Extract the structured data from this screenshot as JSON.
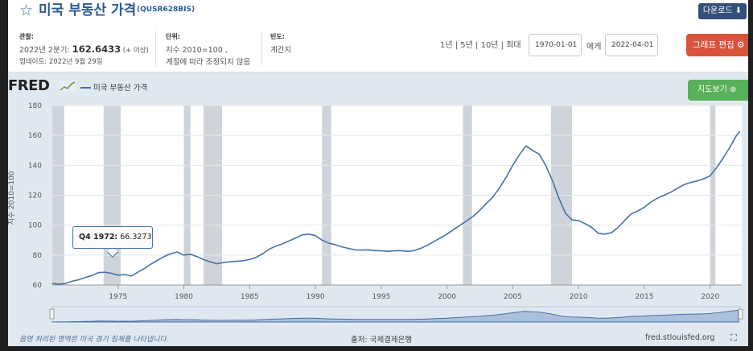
{
  "header": {
    "title": "미국 부동산 가격",
    "series_code": "(QUSR628BIS)",
    "download_label": "다운로드",
    "observation_label": "관찰:",
    "observation_period": "2022년 2분기: ",
    "observation_value": "162.6433",
    "observation_suffix": " (+ 이상)",
    "updated": "업데이트: 2022년 9월 29일",
    "units_label": "단위:",
    "units_line1": "지수 2010=100 ,",
    "units_line2": "계절에 따라 조정되지 않음",
    "frequency_label": "빈도:",
    "frequency_value": "계간지",
    "range_links": "1년 | 5년 | 10년 | 최대",
    "date_from": "1970-01-01",
    "date_to_label": "에게",
    "date_to": "2022-04-01",
    "edit_label": "그래프 편집"
  },
  "logo_text": "FRED",
  "map_button_label": "지도보기",
  "tooltip": {
    "label": "Q4 1972:",
    "value": " 66.3273"
  },
  "footer": {
    "recession_note": "음영 처리된 영역은 미국 경기 침체를 나타냅니다.",
    "source": "출처: 국제결제은행",
    "site": "fred.stlouisfed.org"
  },
  "colors": {
    "line": "#4572a7",
    "recession": "#cfd4da",
    "plot_bg": "#ffffff",
    "edit": "#d9533c",
    "map": "#58b15a"
  },
  "chart_data": {
    "type": "line",
    "title": "",
    "ylabel": "지수 2010=100",
    "xlabel": "",
    "xlim": [
      1970.0,
      2022.4
    ],
    "ylim": [
      60,
      180
    ],
    "yticks": [
      60,
      80,
      100,
      120,
      140,
      160,
      180
    ],
    "xticks": [
      1975,
      1980,
      1985,
      1990,
      1995,
      2000,
      2005,
      2010,
      2015,
      2020
    ],
    "grid": "horizontal",
    "legend": "top-left",
    "series": [
      {
        "name": "미국 부동산 가격",
        "x": [
          1970.0,
          1970.5,
          1971.0,
          1971.5,
          1972.0,
          1972.5,
          1973.0,
          1973.5,
          1974.0,
          1974.5,
          1975.0,
          1975.5,
          1976.0,
          1976.5,
          1977.0,
          1977.5,
          1978.0,
          1978.5,
          1979.0,
          1979.5,
          1980.0,
          1980.5,
          1981.0,
          1981.5,
          1982.0,
          1982.5,
          1983.0,
          1983.5,
          1984.0,
          1984.5,
          1985.0,
          1985.5,
          1986.0,
          1986.5,
          1987.0,
          1987.5,
          1988.0,
          1988.5,
          1989.0,
          1989.5,
          1990.0,
          1990.5,
          1991.0,
          1991.5,
          1992.0,
          1992.5,
          1993.0,
          1993.5,
          1994.0,
          1994.5,
          1995.0,
          1995.5,
          1996.0,
          1996.5,
          1997.0,
          1997.5,
          1998.0,
          1998.5,
          1999.0,
          1999.5,
          2000.0,
          2000.5,
          2001.0,
          2001.5,
          2002.0,
          2002.5,
          2003.0,
          2003.5,
          2004.0,
          2004.5,
          2005.0,
          2005.5,
          2006.0,
          2006.5,
          2007.0,
          2007.5,
          2008.0,
          2008.5,
          2009.0,
          2009.5,
          2010.0,
          2010.5,
          2011.0,
          2011.5,
          2012.0,
          2012.5,
          2013.0,
          2013.5,
          2014.0,
          2014.5,
          2015.0,
          2015.5,
          2016.0,
          2016.5,
          2017.0,
          2017.5,
          2018.0,
          2018.5,
          2019.0,
          2019.5,
          2020.0,
          2020.5,
          2021.0,
          2021.5,
          2022.0,
          2022.25
        ],
        "values": [
          61.0,
          60.5,
          61.0,
          62.5,
          63.5,
          65.0,
          66.3,
          68.3,
          68.5,
          67.8,
          66.5,
          67.0,
          66.0,
          68.5,
          71.0,
          74.0,
          76.5,
          79.0,
          81.0,
          82.0,
          80.0,
          80.5,
          79.0,
          77.0,
          75.5,
          74.2,
          75.0,
          75.5,
          75.8,
          76.2,
          77.0,
          78.5,
          81.0,
          84.0,
          86.0,
          87.5,
          89.5,
          91.5,
          93.5,
          94.0,
          93.0,
          90.0,
          88.0,
          87.0,
          85.5,
          84.5,
          83.5,
          83.3,
          83.5,
          83.0,
          82.8,
          82.5,
          82.8,
          83.0,
          82.5,
          83.0,
          84.5,
          86.5,
          89.0,
          91.5,
          94.0,
          97.0,
          100.0,
          103.0,
          106.0,
          110.0,
          114.5,
          119.0,
          125.0,
          132.0,
          140.0,
          147.0,
          153.0,
          150.0,
          147.5,
          140.0,
          130.0,
          118.0,
          108.0,
          103.5,
          103.0,
          101.0,
          98.5,
          94.5,
          94.0,
          95.0,
          98.5,
          103.0,
          107.5,
          109.5,
          112.0,
          115.5,
          118.0,
          120.0,
          122.0,
          124.5,
          127.0,
          128.5,
          129.5,
          131.0,
          133.0,
          138.5,
          145.0,
          152.0,
          160.0,
          162.6
        ]
      }
    ],
    "recessions": [
      [
        1970.0,
        1970.9
      ],
      [
        1973.9,
        1975.2
      ],
      [
        1980.0,
        1980.5
      ],
      [
        1981.5,
        1982.9
      ],
      [
        1990.5,
        1991.2
      ],
      [
        2001.2,
        2001.9
      ],
      [
        2007.9,
        2009.5
      ],
      [
        2020.0,
        2020.4
      ]
    ]
  }
}
